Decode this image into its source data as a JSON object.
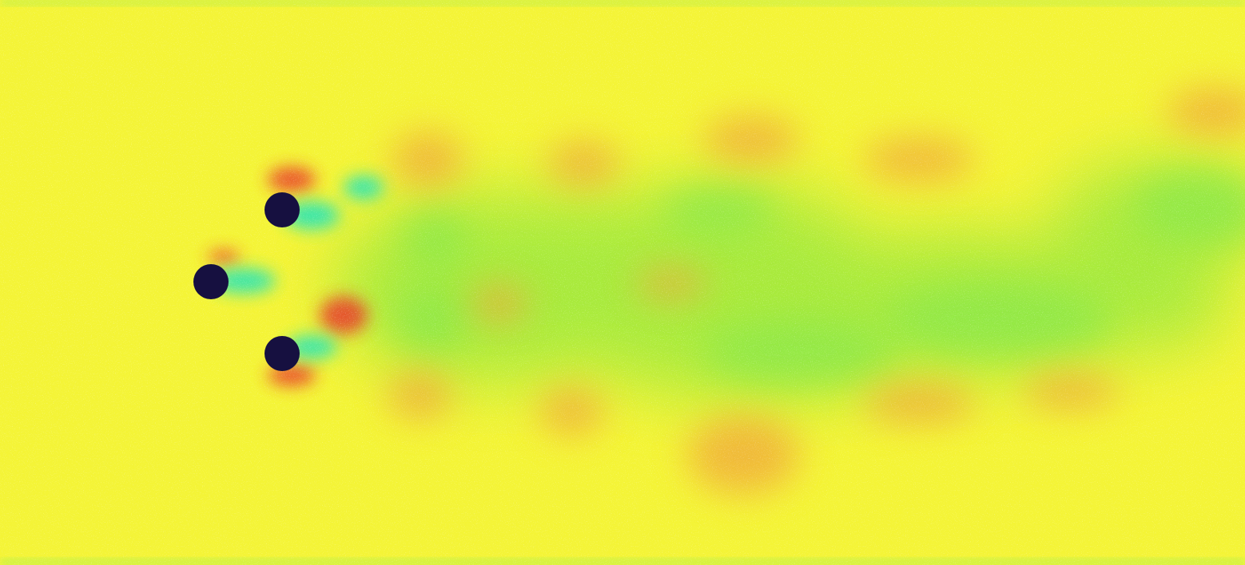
{
  "colors": {
    "free_stream": "#f4f436",
    "wall_band": "#bdf04a",
    "high_band": "#f0a83a",
    "peak": "#e8302a",
    "low_band": "#a6ea3c",
    "wake_core": "#32e6b0",
    "cylinder": "#161040"
  },
  "colormap": "jet",
  "obstacles": [
    {
      "name": "upper-cylinder"
    },
    {
      "name": "front-cylinder"
    },
    {
      "name": "lower-cylinder"
    }
  ]
}
